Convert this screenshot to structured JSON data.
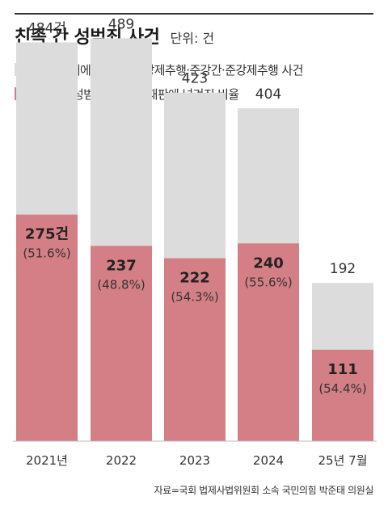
{
  "title": "친족 간 성범죄 사건",
  "unit_label": "단위: 건",
  "source": "자료=국회 법제사법위원회 소속 국민의힘 박준태 의원실",
  "colors": {
    "total": "#dcdcdc",
    "trial": "#d47f85"
  },
  "chart_data": {
    "type": "bar",
    "stacked": "overlay",
    "categories": [
      "2021년",
      "2022",
      "2023",
      "2024",
      "25년 7월"
    ],
    "series": [
      {
        "name": "친족관계에 의한 강간·강제추행·준강간·준강제추행 사건",
        "values": [
          484,
          489,
          423,
          404,
          192
        ],
        "labels": [
          "484건",
          "489",
          "423",
          "404",
          "192"
        ]
      },
      {
        "name": "친족간 성범죄 사건 중 재판에 넘겨진 비율",
        "values": [
          275,
          237,
          222,
          240,
          111
        ],
        "labels": [
          "275건",
          "237",
          "222",
          "240",
          "111"
        ],
        "ratios": [
          "(51.6%)",
          "(48.8%)",
          "(54.3%)",
          "(55.6%)",
          "(54.4%)"
        ]
      }
    ],
    "ylim": [
      0,
      510
    ],
    "grid": false,
    "legend": "top-left"
  }
}
